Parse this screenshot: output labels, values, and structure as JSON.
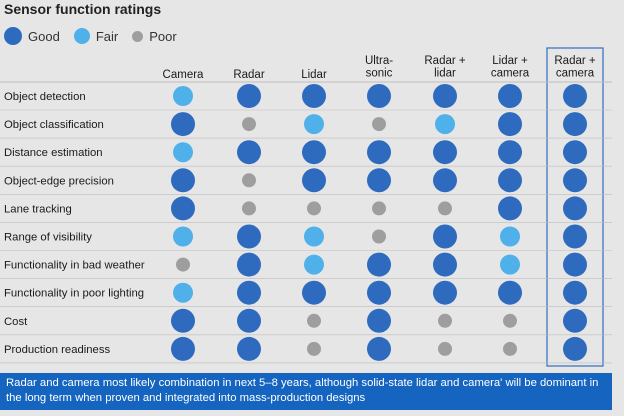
{
  "title": "Sensor function ratings",
  "legend": [
    {
      "label": "Good",
      "key": "good"
    },
    {
      "label": "Fair",
      "key": "fair"
    },
    {
      "label": "Poor",
      "key": "poor"
    }
  ],
  "colors": {
    "good": "#2e6bbf",
    "fair": "#4fb0ea",
    "poor": "#9e9e9e",
    "highlight_border": "#2f6fc0",
    "row_divider": "#bdbdbd"
  },
  "chart_data": {
    "type": "table",
    "title": "Sensor function ratings",
    "columns": [
      "Camera",
      "Radar",
      "Lidar",
      "Ultra-\nsonic",
      "Radar +\nlidar",
      "Lidar +\ncamera",
      "Radar +\ncamera"
    ],
    "highlighted_column": "Radar +\ncamera",
    "rows": [
      {
        "function": "Object detection",
        "ratings": [
          "fair",
          "good",
          "good",
          "good",
          "good",
          "good",
          "good"
        ]
      },
      {
        "function": "Object classification",
        "ratings": [
          "good",
          "poor",
          "fair",
          "poor",
          "fair",
          "good",
          "good"
        ]
      },
      {
        "function": "Distance estimation",
        "ratings": [
          "fair",
          "good",
          "good",
          "good",
          "good",
          "good",
          "good"
        ]
      },
      {
        "function": "Object-edge precision",
        "ratings": [
          "good",
          "poor",
          "good",
          "good",
          "good",
          "good",
          "good"
        ]
      },
      {
        "function": "Lane tracking",
        "ratings": [
          "good",
          "poor",
          "poor",
          "poor",
          "poor",
          "good",
          "good"
        ]
      },
      {
        "function": "Range of visibility",
        "ratings": [
          "fair",
          "good",
          "fair",
          "poor",
          "good",
          "fair",
          "good"
        ]
      },
      {
        "function": "Functionality in bad weather",
        "ratings": [
          "poor",
          "good",
          "fair",
          "good",
          "good",
          "fair",
          "good"
        ]
      },
      {
        "function": "Functionality in poor lighting",
        "ratings": [
          "fair",
          "good",
          "good",
          "good",
          "good",
          "good",
          "good"
        ]
      },
      {
        "function": "Cost",
        "ratings": [
          "good",
          "good",
          "poor",
          "good",
          "poor",
          "poor",
          "good"
        ]
      },
      {
        "function": "Production readiness",
        "ratings": [
          "good",
          "good",
          "poor",
          "good",
          "poor",
          "poor",
          "good"
        ]
      }
    ]
  },
  "footnote": "Radar and camera most likely combination in next 5–8 years, although solid-state lidar and camera' will be dominant in the long term when proven and integrated into mass-production designs"
}
